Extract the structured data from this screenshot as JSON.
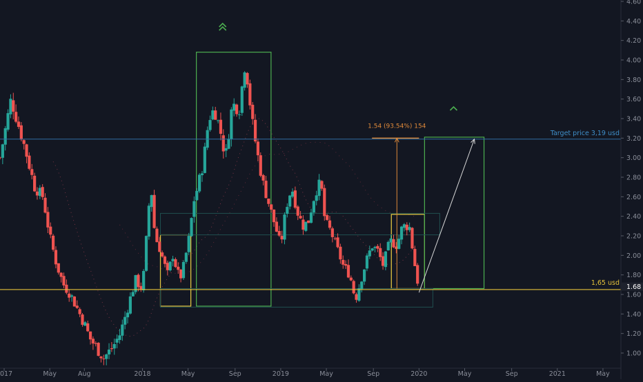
{
  "chart_data": {
    "type": "candlestick",
    "y_axis": {
      "ticks": [
        "4.60",
        "4.40",
        "4.20",
        "4.00",
        "3.80",
        "3.60",
        "3.40",
        "3.20",
        "3.00",
        "2.80",
        "2.60",
        "2.40",
        "2.20",
        "2.00",
        "1.80",
        "1.60",
        "1.40",
        "1.20",
        "1.00"
      ],
      "range": [
        0.92,
        4.62
      ],
      "scale": "linear",
      "current_price_label": "1.68"
    },
    "x_axis": {
      "ticks": [
        {
          "label": "2017",
          "year": 2017.0
        },
        {
          "label": "May",
          "year": 2017.33
        },
        {
          "label": "Aug",
          "year": 2017.58
        },
        {
          "label": "2018",
          "year": 2018.0
        },
        {
          "label": "May",
          "year": 2018.33
        },
        {
          "label": "Sep",
          "year": 2018.67
        },
        {
          "label": "2019",
          "year": 2019.0
        },
        {
          "label": "May",
          "year": 2019.33
        },
        {
          "label": "Sep",
          "year": 2019.67
        },
        {
          "label": "2020",
          "year": 2020.0
        },
        {
          "label": "May",
          "year": 2020.33
        },
        {
          "label": "Sep",
          "year": 2020.67
        },
        {
          "label": "2021",
          "year": 2021.0
        },
        {
          "label": "May",
          "year": 2021.33
        }
      ]
    },
    "price_path": [
      [
        2016.97,
        3.0
      ],
      [
        2017.05,
        3.6
      ],
      [
        2017.09,
        3.4
      ],
      [
        2017.15,
        3.1
      ],
      [
        2017.22,
        2.7
      ],
      [
        2017.28,
        2.6
      ],
      [
        2017.33,
        2.2
      ],
      [
        2017.38,
        1.9
      ],
      [
        2017.43,
        1.7
      ],
      [
        2017.48,
        1.6
      ],
      [
        2017.53,
        1.45
      ],
      [
        2017.58,
        1.3
      ],
      [
        2017.62,
        1.15
      ],
      [
        2017.67,
        1.05
      ],
      [
        2017.72,
        0.95
      ],
      [
        2017.78,
        1.05
      ],
      [
        2017.84,
        1.2
      ],
      [
        2017.9,
        1.5
      ],
      [
        2017.95,
        1.75
      ],
      [
        2018.0,
        1.65
      ],
      [
        2018.03,
        2.2
      ],
      [
        2018.06,
        2.75
      ],
      [
        2018.09,
        2.2
      ],
      [
        2018.13,
        2.05
      ],
      [
        2018.18,
        1.8
      ],
      [
        2018.22,
        2.0
      ],
      [
        2018.27,
        1.75
      ],
      [
        2018.3,
        1.9
      ],
      [
        2018.34,
        2.2
      ],
      [
        2018.37,
        2.55
      ],
      [
        2018.4,
        2.7
      ],
      [
        2018.44,
        2.95
      ],
      [
        2018.48,
        3.4
      ],
      [
        2018.52,
        3.5
      ],
      [
        2018.56,
        3.3
      ],
      [
        2018.6,
        3.0
      ],
      [
        2018.65,
        3.55
      ],
      [
        2018.7,
        3.5
      ],
      [
        2018.74,
        3.95
      ],
      [
        2018.76,
        3.8
      ],
      [
        2018.79,
        3.4
      ],
      [
        2018.83,
        3.05
      ],
      [
        2018.87,
        2.75
      ],
      [
        2018.91,
        2.55
      ],
      [
        2018.95,
        2.35
      ],
      [
        2019.0,
        2.1
      ],
      [
        2019.04,
        2.5
      ],
      [
        2019.08,
        2.7
      ],
      [
        2019.12,
        2.45
      ],
      [
        2019.16,
        2.3
      ],
      [
        2019.2,
        2.35
      ],
      [
        2019.25,
        2.65
      ],
      [
        2019.29,
        2.75
      ],
      [
        2019.32,
        2.35
      ],
      [
        2019.36,
        2.25
      ],
      [
        2019.4,
        2.1
      ],
      [
        2019.45,
        1.9
      ],
      [
        2019.5,
        1.8
      ],
      [
        2019.54,
        1.55
      ],
      [
        2019.58,
        1.75
      ],
      [
        2019.62,
        1.95
      ],
      [
        2019.66,
        2.1
      ],
      [
        2019.7,
        2.05
      ],
      [
        2019.74,
        1.9
      ],
      [
        2019.79,
        2.15
      ],
      [
        2019.84,
        2.1
      ],
      [
        2019.88,
        2.3
      ],
      [
        2019.93,
        2.3
      ],
      [
        2019.97,
        1.9
      ],
      [
        2020.0,
        1.65
      ]
    ],
    "annotations": {
      "target_label": "Target price 3,19 usd",
      "target_price": 3.19,
      "support_label": "1,65 usd",
      "support_price": 1.65,
      "measure_label": "1.54 (93.54%) 154",
      "colors": {
        "up": "#26a69a",
        "down": "#ef5350",
        "box_green": "#4caf50",
        "box_yellow": "#e0c341",
        "support_line": "#e6c23a",
        "target_line": "#2f6ea3",
        "measure": "#e08a3a",
        "target_text": "#3f8fc9",
        "axis_text": "#8b8f9a"
      }
    }
  }
}
